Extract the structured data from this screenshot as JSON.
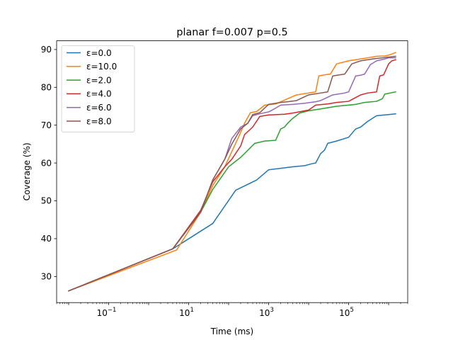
{
  "chart_data": {
    "type": "line",
    "title": "planar f=0.007 p=0.5",
    "xlabel": "Time (ms)",
    "ylabel": "Coverage (%)",
    "xscale": "log",
    "xlim": [
      0.005,
      3000000
    ],
    "ylim": [
      23.1,
      92.3
    ],
    "grid": false,
    "legend_position": "top-left",
    "x_ticks": [
      {
        "value": 0.1,
        "base": "10",
        "exp": "−1"
      },
      {
        "value": 10,
        "base": "10",
        "exp": "1"
      },
      {
        "value": 1000,
        "base": "10",
        "exp": "3"
      },
      {
        "value": 100000,
        "base": "10",
        "exp": "5"
      }
    ],
    "y_ticks": [
      30,
      40,
      50,
      60,
      70,
      80,
      90
    ],
    "series": [
      {
        "name": "ε=0.0",
        "color": "#1f77b4",
        "points": [
          [
            0.01,
            26.2
          ],
          [
            4,
            37.3
          ],
          [
            40,
            44.0
          ],
          [
            150,
            52.8
          ],
          [
            500,
            55.5
          ],
          [
            1000,
            58.2
          ],
          [
            2000,
            58.6
          ],
          [
            4000,
            59.0
          ],
          [
            8000,
            59.3
          ],
          [
            12000,
            59.8
          ],
          [
            15000,
            60.0
          ],
          [
            20000,
            62.5
          ],
          [
            25000,
            63.4
          ],
          [
            30000,
            65.2
          ],
          [
            50000,
            65.8
          ],
          [
            100000,
            66.8
          ],
          [
            150000,
            69.0
          ],
          [
            200000,
            69.5
          ],
          [
            300000,
            71.0
          ],
          [
            500000,
            72.5
          ],
          [
            1000000,
            72.8
          ],
          [
            1500000,
            73.0
          ]
        ]
      },
      {
        "name": "ε=10.0",
        "color": "#ff7f0e",
        "points": [
          [
            0.01,
            26.2
          ],
          [
            5,
            37.0
          ],
          [
            20,
            47.0
          ],
          [
            40,
            54.0
          ],
          [
            80,
            59.0
          ],
          [
            120,
            63.0
          ],
          [
            180,
            67.0
          ],
          [
            250,
            70.5
          ],
          [
            350,
            73.3
          ],
          [
            500,
            73.6
          ],
          [
            800,
            75.3
          ],
          [
            1500,
            75.6
          ],
          [
            3000,
            77.0
          ],
          [
            5000,
            78.0
          ],
          [
            10000,
            78.5
          ],
          [
            15000,
            78.8
          ],
          [
            18000,
            83.0
          ],
          [
            25000,
            83.3
          ],
          [
            35000,
            83.5
          ],
          [
            50000,
            86.2
          ],
          [
            100000,
            87.0
          ],
          [
            200000,
            87.5
          ],
          [
            300000,
            87.8
          ],
          [
            500000,
            88.2
          ],
          [
            800000,
            88.3
          ],
          [
            1000000,
            88.5
          ],
          [
            1500000,
            89.2
          ]
        ]
      },
      {
        "name": "ε=2.0",
        "color": "#2ca02c",
        "points": [
          [
            0.01,
            26.2
          ],
          [
            4,
            37.3
          ],
          [
            20,
            47.0
          ],
          [
            40,
            53.0
          ],
          [
            100,
            59.0
          ],
          [
            200,
            61.5
          ],
          [
            450,
            65.2
          ],
          [
            800,
            65.8
          ],
          [
            1500,
            66.0
          ],
          [
            2000,
            69.0
          ],
          [
            2500,
            69.5
          ],
          [
            3000,
            70.5
          ],
          [
            4000,
            71.8
          ],
          [
            6000,
            73.2
          ],
          [
            10000,
            73.8
          ],
          [
            20000,
            74.3
          ],
          [
            50000,
            75.0
          ],
          [
            100000,
            75.3
          ],
          [
            150000,
            75.5
          ],
          [
            250000,
            76.0
          ],
          [
            500000,
            76.3
          ],
          [
            700000,
            77.0
          ],
          [
            800000,
            78.2
          ],
          [
            1500000,
            78.8
          ]
        ]
      },
      {
        "name": "ε=4.0",
        "color": "#d62728",
        "points": [
          [
            0.01,
            26.2
          ],
          [
            4,
            37.3
          ],
          [
            20,
            47.5
          ],
          [
            40,
            55.0
          ],
          [
            80,
            59.0
          ],
          [
            120,
            61.0
          ],
          [
            200,
            64.5
          ],
          [
            250,
            67.5
          ],
          [
            400,
            69.5
          ],
          [
            600,
            72.3
          ],
          [
            1000,
            72.7
          ],
          [
            2500,
            72.9
          ],
          [
            4000,
            73.2
          ],
          [
            10000,
            74.0
          ],
          [
            15000,
            75.3
          ],
          [
            30000,
            75.6
          ],
          [
            50000,
            76.0
          ],
          [
            100000,
            76.3
          ],
          [
            200000,
            78.0
          ],
          [
            300000,
            78.5
          ],
          [
            500000,
            78.8
          ],
          [
            600000,
            83.0
          ],
          [
            750000,
            83.3
          ],
          [
            1000000,
            86.2
          ],
          [
            1200000,
            87.0
          ],
          [
            1500000,
            87.3
          ]
        ]
      },
      {
        "name": "ε=6.0",
        "color": "#9467bd",
        "points": [
          [
            0.01,
            26.2
          ],
          [
            4,
            37.3
          ],
          [
            20,
            47.0
          ],
          [
            40,
            55.5
          ],
          [
            80,
            61.0
          ],
          [
            120,
            66.5
          ],
          [
            200,
            69.5
          ],
          [
            300,
            70.5
          ],
          [
            400,
            72.5
          ],
          [
            600,
            73.0
          ],
          [
            1000,
            73.5
          ],
          [
            1500,
            74.5
          ],
          [
            2000,
            75.3
          ],
          [
            4000,
            75.5
          ],
          [
            8000,
            75.8
          ],
          [
            15000,
            76.2
          ],
          [
            20000,
            76.5
          ],
          [
            40000,
            78.0
          ],
          [
            80000,
            78.5
          ],
          [
            100000,
            78.8
          ],
          [
            150000,
            83.0
          ],
          [
            200000,
            83.2
          ],
          [
            250000,
            83.5
          ],
          [
            350000,
            86.0
          ],
          [
            500000,
            87.0
          ],
          [
            800000,
            87.5
          ],
          [
            1000000,
            87.8
          ],
          [
            1500000,
            87.8
          ]
        ]
      },
      {
        "name": "ε=8.0",
        "color": "#8c564b",
        "points": [
          [
            0.01,
            26.2
          ],
          [
            4,
            37.3
          ],
          [
            20,
            47.0
          ],
          [
            40,
            55.5
          ],
          [
            80,
            61.0
          ],
          [
            120,
            65.0
          ],
          [
            200,
            69.0
          ],
          [
            300,
            70.5
          ],
          [
            400,
            72.8
          ],
          [
            600,
            73.3
          ],
          [
            1000,
            75.5
          ],
          [
            2000,
            76.0
          ],
          [
            3000,
            76.2
          ],
          [
            5000,
            76.5
          ],
          [
            10000,
            78.0
          ],
          [
            20000,
            78.5
          ],
          [
            30000,
            78.8
          ],
          [
            40000,
            83.0
          ],
          [
            60000,
            83.3
          ],
          [
            80000,
            83.5
          ],
          [
            120000,
            86.2
          ],
          [
            200000,
            87.0
          ],
          [
            400000,
            87.5
          ],
          [
            700000,
            87.8
          ],
          [
            1000000,
            88.0
          ],
          [
            1500000,
            88.2
          ]
        ]
      }
    ]
  }
}
